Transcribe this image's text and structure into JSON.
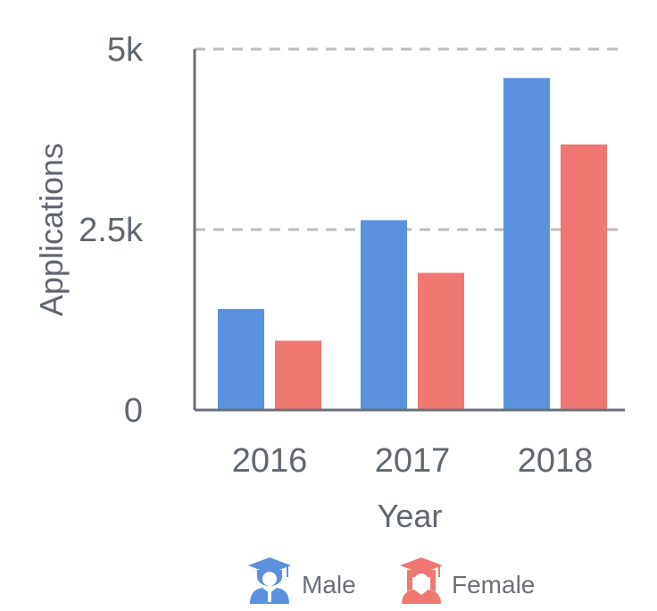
{
  "chart_data": {
    "type": "bar",
    "title": "",
    "xlabel": "Year",
    "ylabel": "Applications",
    "categories": [
      "2016",
      "2017",
      "2018"
    ],
    "series": [
      {
        "name": "Male",
        "values": [
          1400,
          2630,
          4600
        ]
      },
      {
        "name": "Female",
        "values": [
          960,
          1900,
          3680
        ]
      }
    ],
    "ylim": [
      0,
      5000
    ],
    "yticks": [
      {
        "value": 0,
        "label": "0"
      },
      {
        "value": 2500,
        "label": "2.5k"
      },
      {
        "value": 5000,
        "label": "5k"
      }
    ],
    "grid": "horizontal dashed",
    "legend": "bottom",
    "legend_icons": [
      "male-graduate-icon",
      "female-graduate-icon"
    ],
    "colors": {
      "male": "#5a92dd",
      "female": "#ef7872",
      "axis": "#6b7079",
      "grid": "#bdbdbd",
      "text": "#616771"
    }
  }
}
